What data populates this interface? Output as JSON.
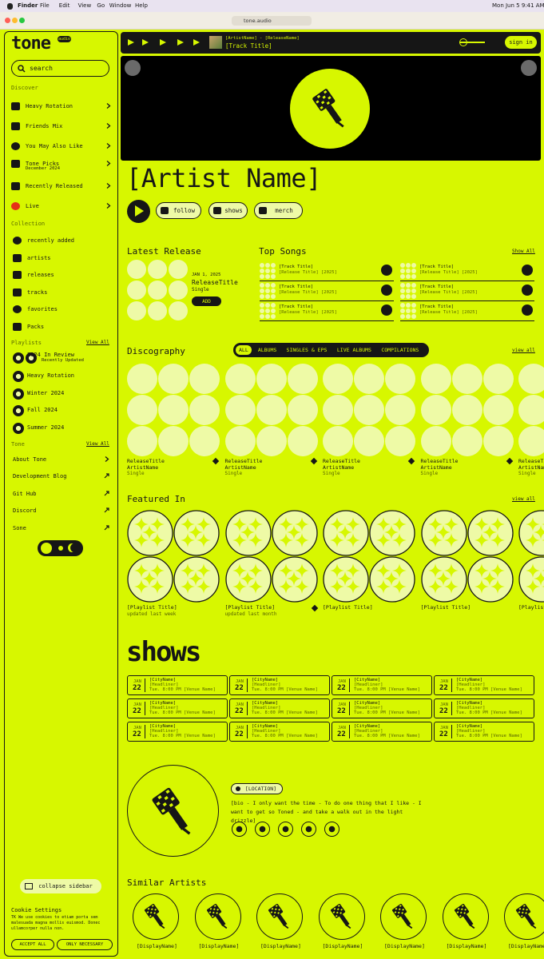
{
  "menubar": {
    "app": "Finder",
    "menus": [
      "File",
      "Edit",
      "View",
      "Go",
      "Window",
      "Help"
    ],
    "datetime": "Mon Jun 5  9:41 AM"
  },
  "browser": {
    "url": "tone.audio"
  },
  "sidebar": {
    "logo": "tone",
    "badge": "audio",
    "search": "search",
    "discover": {
      "title": "Discover",
      "items": [
        {
          "label": "Heavy Rotation"
        },
        {
          "label": "Friends Mix"
        },
        {
          "label": "You May Also Like"
        },
        {
          "label": "Tone Picks",
          "sub": "December 2024"
        },
        {
          "label": "Recently Released"
        },
        {
          "label": "Live"
        }
      ]
    },
    "collection": {
      "title": "Collection",
      "items": [
        "recently added",
        "artists",
        "releases",
        "tracks",
        "favorites",
        "Packs"
      ]
    },
    "playlists": {
      "title": "Playlists",
      "view_all": "View All",
      "items": [
        {
          "label": "2024 In Review",
          "sub": "Recently Updated"
        },
        {
          "label": "Heavy Rotation"
        },
        {
          "label": "Winter 2024"
        },
        {
          "label": "Fall 2024"
        },
        {
          "label": "Summer 2024"
        }
      ]
    },
    "tone": {
      "title": "Tone",
      "view_all": "View All",
      "items": [
        "About Tone",
        "Development Blog",
        "Git Hub",
        "Discord",
        "Sone"
      ]
    },
    "collapse": "collapse sidebar",
    "cookie": {
      "title": "Cookie Settings",
      "text": "TK We use cookies to etiam porta sem malesuada magna mollis euismod. Donec ullamcorper nulla non.",
      "accept": "ACCEPT ALL",
      "necessary": "ONLY NECESSARY"
    }
  },
  "player": {
    "artist_release": "[ArtistName] - [ReleaseName]",
    "track": "[Track Title]",
    "sign_in": "sign in"
  },
  "artist": {
    "name": "[Artist Name]",
    "buttons": [
      "follow",
      "shows",
      "merch"
    ]
  },
  "latest": {
    "title": "Latest Release",
    "date": "JAN 1, 2025",
    "name": "ReleaseTitle",
    "type": "Single",
    "add": "ADD"
  },
  "top_songs": {
    "title": "Top Songs",
    "show_all": "Show All",
    "songs": [
      {
        "title": "[Track Title]",
        "sub": "[Release Title] [2025]"
      },
      {
        "title": "[Track Title]",
        "sub": "[Release Title] [2025]"
      },
      {
        "title": "[Track Title]",
        "sub": "[Release Title] [2025]"
      },
      {
        "title": "[Track Title]",
        "sub": "[Release Title] [2025]"
      },
      {
        "title": "[Track Title]",
        "sub": "[Release Title] [2025]"
      },
      {
        "title": "[Track Title]",
        "sub": "[Release Title] [2025]"
      }
    ]
  },
  "discography": {
    "title": "Discography",
    "filters": [
      "ALL",
      "ALBUMS",
      "SINGLES & EPS",
      "LIVE ALBUMS",
      "COMPILATIONS"
    ],
    "view_all": "view all",
    "items": [
      {
        "title": "ReleaseTitle",
        "artist": "ArtistName",
        "type": "Single"
      },
      {
        "title": "ReleaseTitle",
        "artist": "ArtistName",
        "type": "Single"
      },
      {
        "title": "ReleaseTitle",
        "artist": "ArtistName",
        "type": "Single"
      },
      {
        "title": "ReleaseTitle",
        "artist": "ArtistName",
        "type": "Single"
      },
      {
        "title": "ReleaseTitle",
        "artist": "ArtistName",
        "type": "Single"
      }
    ]
  },
  "featured": {
    "title": "Featured In",
    "view_all": "view all",
    "items": [
      {
        "title": "[Playlist Title]",
        "sub": "updated last week"
      },
      {
        "title": "[Playlist Title]",
        "sub": "updated last month"
      },
      {
        "title": "[Playlist Title]"
      },
      {
        "title": "[Playlist Title]"
      },
      {
        "title": "[Playlist Title]"
      }
    ]
  },
  "shows": {
    "title": "shows",
    "items": [
      {
        "month": "JAN",
        "day": "22",
        "city": "[CityName]",
        "headliner": "[Headliner]",
        "time": "Tue. 8:00 PM [Venue Name]"
      },
      {
        "month": "JAN",
        "day": "22",
        "city": "[CityName]",
        "headliner": "[Headliner]",
        "time": "Tue. 8:00 PM [Venue Name]"
      },
      {
        "month": "JAN",
        "day": "22",
        "city": "[CityName]",
        "headliner": "[Headliner]",
        "time": "Tue. 8:00 PM [Venue Name]"
      },
      {
        "month": "JAN",
        "day": "22",
        "city": "[CityName]",
        "headliner": "[Headliner]",
        "time": "Tue. 8:00 PM [Venue Name]"
      },
      {
        "month": "JAN",
        "day": "22",
        "city": "[CityName]",
        "headliner": "[Headliner]",
        "time": "Tue. 8:00 PM [Venue Name]"
      },
      {
        "month": "JAN",
        "day": "22",
        "city": "[CityName]",
        "headliner": "[Headliner]",
        "time": "Tue. 8:00 PM [Venue Name]"
      },
      {
        "month": "JAN",
        "day": "22",
        "city": "[CityName]",
        "headliner": "[Headliner]",
        "time": "Tue. 8:00 PM [Venue Name]"
      },
      {
        "month": "JAN",
        "day": "22",
        "city": "[CityName]",
        "headliner": "[Headliner]",
        "time": "Tue. 8:00 PM [Venue Name]"
      },
      {
        "month": "JAN",
        "day": "22",
        "city": "[CityName]",
        "headliner": "[Headliner]",
        "time": "Tue. 8:00 PM [Venue Name]"
      },
      {
        "month": "JAN",
        "day": "22",
        "city": "[CityName]",
        "headliner": "[Headliner]",
        "time": "Tue. 8:00 PM [Venue Name]"
      },
      {
        "month": "JAN",
        "day": "22",
        "city": "[CityName]",
        "headliner": "[Headliner]",
        "time": "Tue. 8:00 PM [Venue Name]"
      },
      {
        "month": "JAN",
        "day": "22",
        "city": "[CityName]",
        "headliner": "[Headliner]",
        "time": "Tue. 8:00 PM [Venue Name]"
      }
    ]
  },
  "bio": {
    "location": "[LOCATION]",
    "text": "[bio - I only want the time - To do one thing that I like - I want to get so Toned - and take a walk out in the light drizzle]"
  },
  "similar": {
    "title": "Similar Artists",
    "items": [
      "[DisplayName]",
      "[DisplayName]",
      "[DisplayName]",
      "[DisplayName]",
      "[DisplayName]",
      "[DisplayName]",
      "[DisplayName]"
    ]
  }
}
